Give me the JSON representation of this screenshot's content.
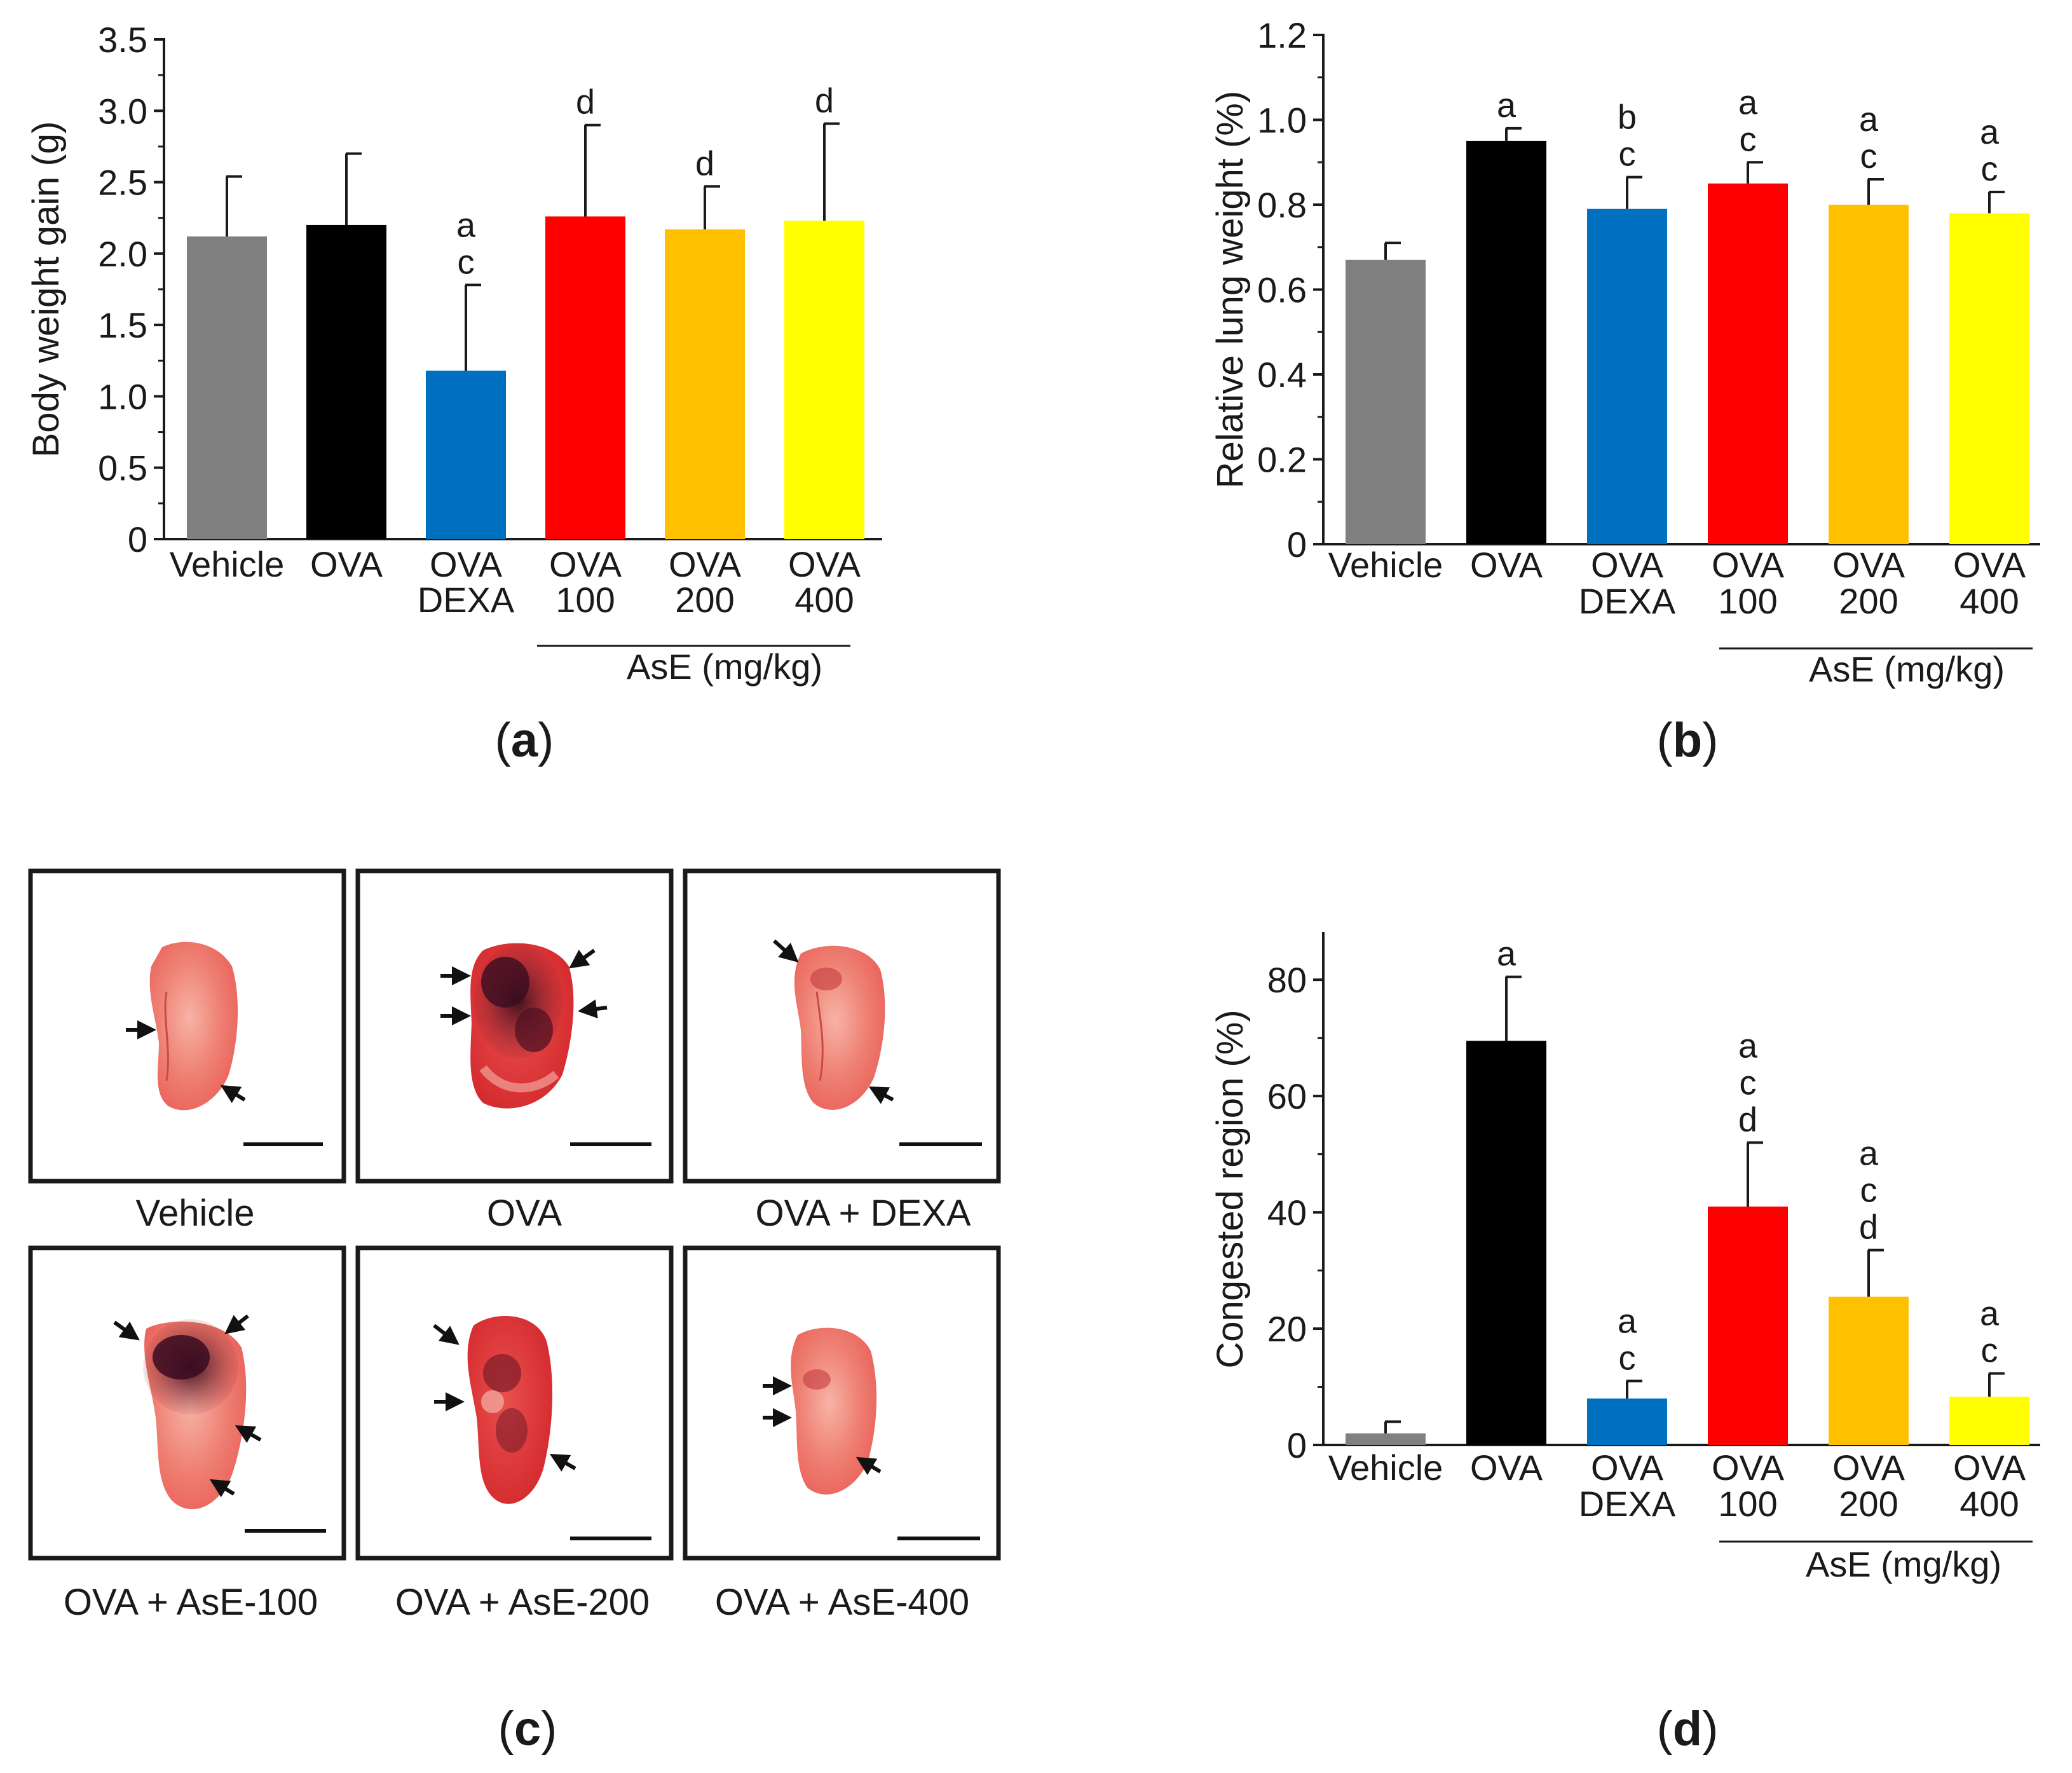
{
  "figure": {
    "panel_labels": [
      "a",
      "b",
      "c",
      "d"
    ],
    "photo_labels": [
      "Vehicle",
      "OVA",
      "OVA + DEXA",
      "OVA + AsE-100",
      "OVA + AsE-200",
      "OVA + AsE-400"
    ]
  },
  "colors": {
    "vehicle": "#808080",
    "ova": "#000000",
    "dexa": "#0070C0",
    "ase100": "#FF0000",
    "ase200": "#FFC000",
    "ase400": "#FFFF00"
  },
  "chart_data": [
    {
      "id": "a",
      "type": "bar",
      "ylabel": "Body weight gain  (g)",
      "ylim": [
        0,
        3.5
      ],
      "yticks": [
        0,
        0.5,
        1.0,
        1.5,
        2.0,
        2.5,
        3.0,
        3.5
      ],
      "ytick_labels": [
        "0",
        "0.5",
        "1.0",
        "1.5",
        "2.0",
        "2.5",
        "3.0",
        "3.5"
      ],
      "categories": [
        [
          "Vehicle"
        ],
        [
          "OVA"
        ],
        [
          "OVA",
          "DEXA"
        ],
        [
          "OVA",
          "100"
        ],
        [
          "OVA",
          "200"
        ],
        [
          "OVA",
          "400"
        ]
      ],
      "values": [
        2.12,
        2.2,
        1.18,
        2.26,
        2.17,
        2.23
      ],
      "errors": [
        0.42,
        0.5,
        0.6,
        0.64,
        0.3,
        0.68
      ],
      "annotations": [
        [],
        [],
        [
          "a",
          "c"
        ],
        [
          "d"
        ],
        [
          "d"
        ],
        [
          "d"
        ]
      ],
      "group_label": "AsE (mg/kg)"
    },
    {
      "id": "b",
      "type": "bar",
      "ylabel": "Relative lung weight (%)",
      "ylim": [
        0,
        1.2
      ],
      "yticks": [
        0,
        0.2,
        0.4,
        0.6,
        0.8,
        1.0,
        1.2
      ],
      "ytick_labels": [
        "0",
        "0.2",
        "0.4",
        "0.6",
        "0.8",
        "1.0",
        "1.2"
      ],
      "categories": [
        [
          "Vehicle"
        ],
        [
          "OVA"
        ],
        [
          "OVA",
          "DEXA"
        ],
        [
          "OVA",
          "100"
        ],
        [
          "OVA",
          "200"
        ],
        [
          "OVA",
          "400"
        ]
      ],
      "values": [
        0.67,
        0.95,
        0.79,
        0.85,
        0.8,
        0.78
      ],
      "errors": [
        0.04,
        0.03,
        0.075,
        0.05,
        0.06,
        0.05
      ],
      "annotations": [
        [],
        [
          "a"
        ],
        [
          "b",
          "c"
        ],
        [
          "a",
          "c"
        ],
        [
          "a",
          "c"
        ],
        [
          "a",
          "c"
        ]
      ],
      "group_label": "AsE (mg/kg)"
    },
    {
      "id": "d",
      "type": "bar",
      "ylabel": "Congested region (%)",
      "ylim": [
        0,
        88
      ],
      "yticks": [
        0,
        20,
        40,
        60,
        80
      ],
      "ytick_labels": [
        "0",
        "20",
        "40",
        "60",
        "80"
      ],
      "categories": [
        [
          "Vehicle"
        ],
        [
          "OVA"
        ],
        [
          "OVA",
          "DEXA"
        ],
        [
          "OVA",
          "100"
        ],
        [
          "OVA",
          "200"
        ],
        [
          "OVA",
          "400"
        ]
      ],
      "values": [
        2.0,
        69.5,
        8.0,
        41.0,
        25.5,
        8.3
      ],
      "errors": [
        2.0,
        11.0,
        3.0,
        11.0,
        8.0,
        4.0
      ],
      "annotations": [
        [],
        [
          "a"
        ],
        [
          "a",
          "c"
        ],
        [
          "a",
          "c",
          "d"
        ],
        [
          "a",
          "c",
          "d"
        ],
        [
          "a",
          "c"
        ]
      ],
      "group_label": "AsE (mg/kg)"
    }
  ]
}
